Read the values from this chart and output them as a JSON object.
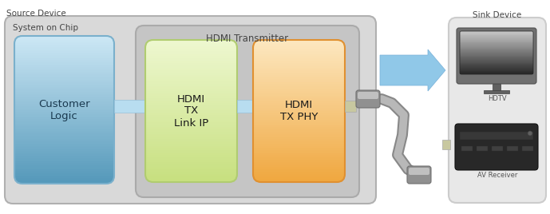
{
  "fig_width": 6.89,
  "fig_height": 2.68,
  "dpi": 100,
  "bg_color": "#ffffff",
  "source_device_label": "Source Device",
  "sink_device_label": "Sink Device",
  "soc_label": "System on Chip",
  "hdmi_tx_label": "HDMI Transmitter",
  "customer_logic_label": "Customer\nLogic",
  "hdmi_tx_link_label": "HDMI\nTX\nLink IP",
  "hdmi_tx_phy_label": "HDMI\nTX PHY",
  "hdtv_label": "HDTV",
  "av_receiver_label": "AV Receiver",
  "soc_fc": "#d9d9d9",
  "soc_ec": "#b0b0b0",
  "hdmi_tx_fc": "#c5c5c5",
  "hdmi_tx_ec": "#aaaaaa",
  "cl_top": "#cde8f5",
  "cl_bottom": "#5599bb",
  "cl_ec": "#7ab0cc",
  "lk_top": "#eef8d0",
  "lk_bottom": "#c8e080",
  "lk_ec": "#b0cc70",
  "phy_top": "#fde8c0",
  "phy_bottom": "#f0a840",
  "phy_ec": "#e09030",
  "arrow_fc": "#90c8e8",
  "arrow_ec": "#78b0d8",
  "connector_fc": "#909090",
  "connector_ec": "#707070",
  "connector_shade": "#707070",
  "cable_color": "#a0a0a0",
  "cable_dark": "#888888",
  "sink_fc": "#e8e8e8",
  "sink_ec": "#cccccc",
  "tv_body": "#606060",
  "tv_screen_top": "#c8c8c8",
  "tv_screen_bottom": "#404040",
  "av_body": "#282828",
  "av_slot": "#484848",
  "text_color": "#444444",
  "label_color": "#555555",
  "connector_stub_fc": "#c8c8a0",
  "connector_stub_ec": "#aaaaaa"
}
